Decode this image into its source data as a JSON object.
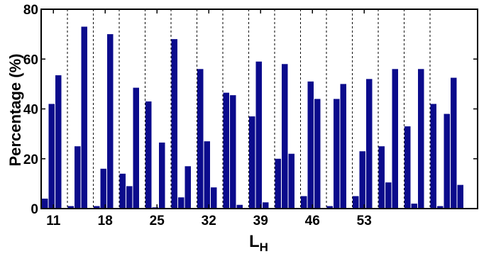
{
  "chart_data": {
    "type": "bar",
    "title": "",
    "xlabel": "L",
    "xlabel_subscript": "H",
    "ylabel": "Percentage (%)",
    "ylim": [
      0,
      80
    ],
    "yticks": [
      0,
      20,
      40,
      60,
      80
    ],
    "xtick_labels": [
      {
        "label": "11",
        "group": 0
      },
      {
        "label": "18",
        "group": 2
      },
      {
        "label": "25",
        "group": 4
      },
      {
        "label": "32",
        "group": 6
      },
      {
        "label": "39",
        "group": 8
      },
      {
        "label": "46",
        "group": 10
      },
      {
        "label": "53",
        "group": 12
      }
    ],
    "bar_color": "#0b0b8c",
    "grid": false,
    "group_separators": "dotted",
    "groups": [
      [
        4,
        42,
        53.5
      ],
      [
        1,
        25,
        73
      ],
      [
        1,
        16,
        70
      ],
      [
        14,
        9,
        48.5
      ],
      [
        43,
        0.5,
        26.5
      ],
      [
        68,
        4.5,
        17
      ],
      [
        56,
        27,
        8.5
      ],
      [
        46.5,
        45.5,
        1.5
      ],
      [
        37,
        59,
        2.5
      ],
      [
        20,
        58,
        22
      ],
      [
        5,
        51,
        44
      ],
      [
        1,
        44,
        50
      ],
      [
        5,
        23,
        52
      ],
      [
        25,
        10.5,
        56
      ],
      [
        33,
        2,
        56
      ],
      [
        42,
        1,
        38,
        52.5,
        9.5
      ]
    ]
  }
}
